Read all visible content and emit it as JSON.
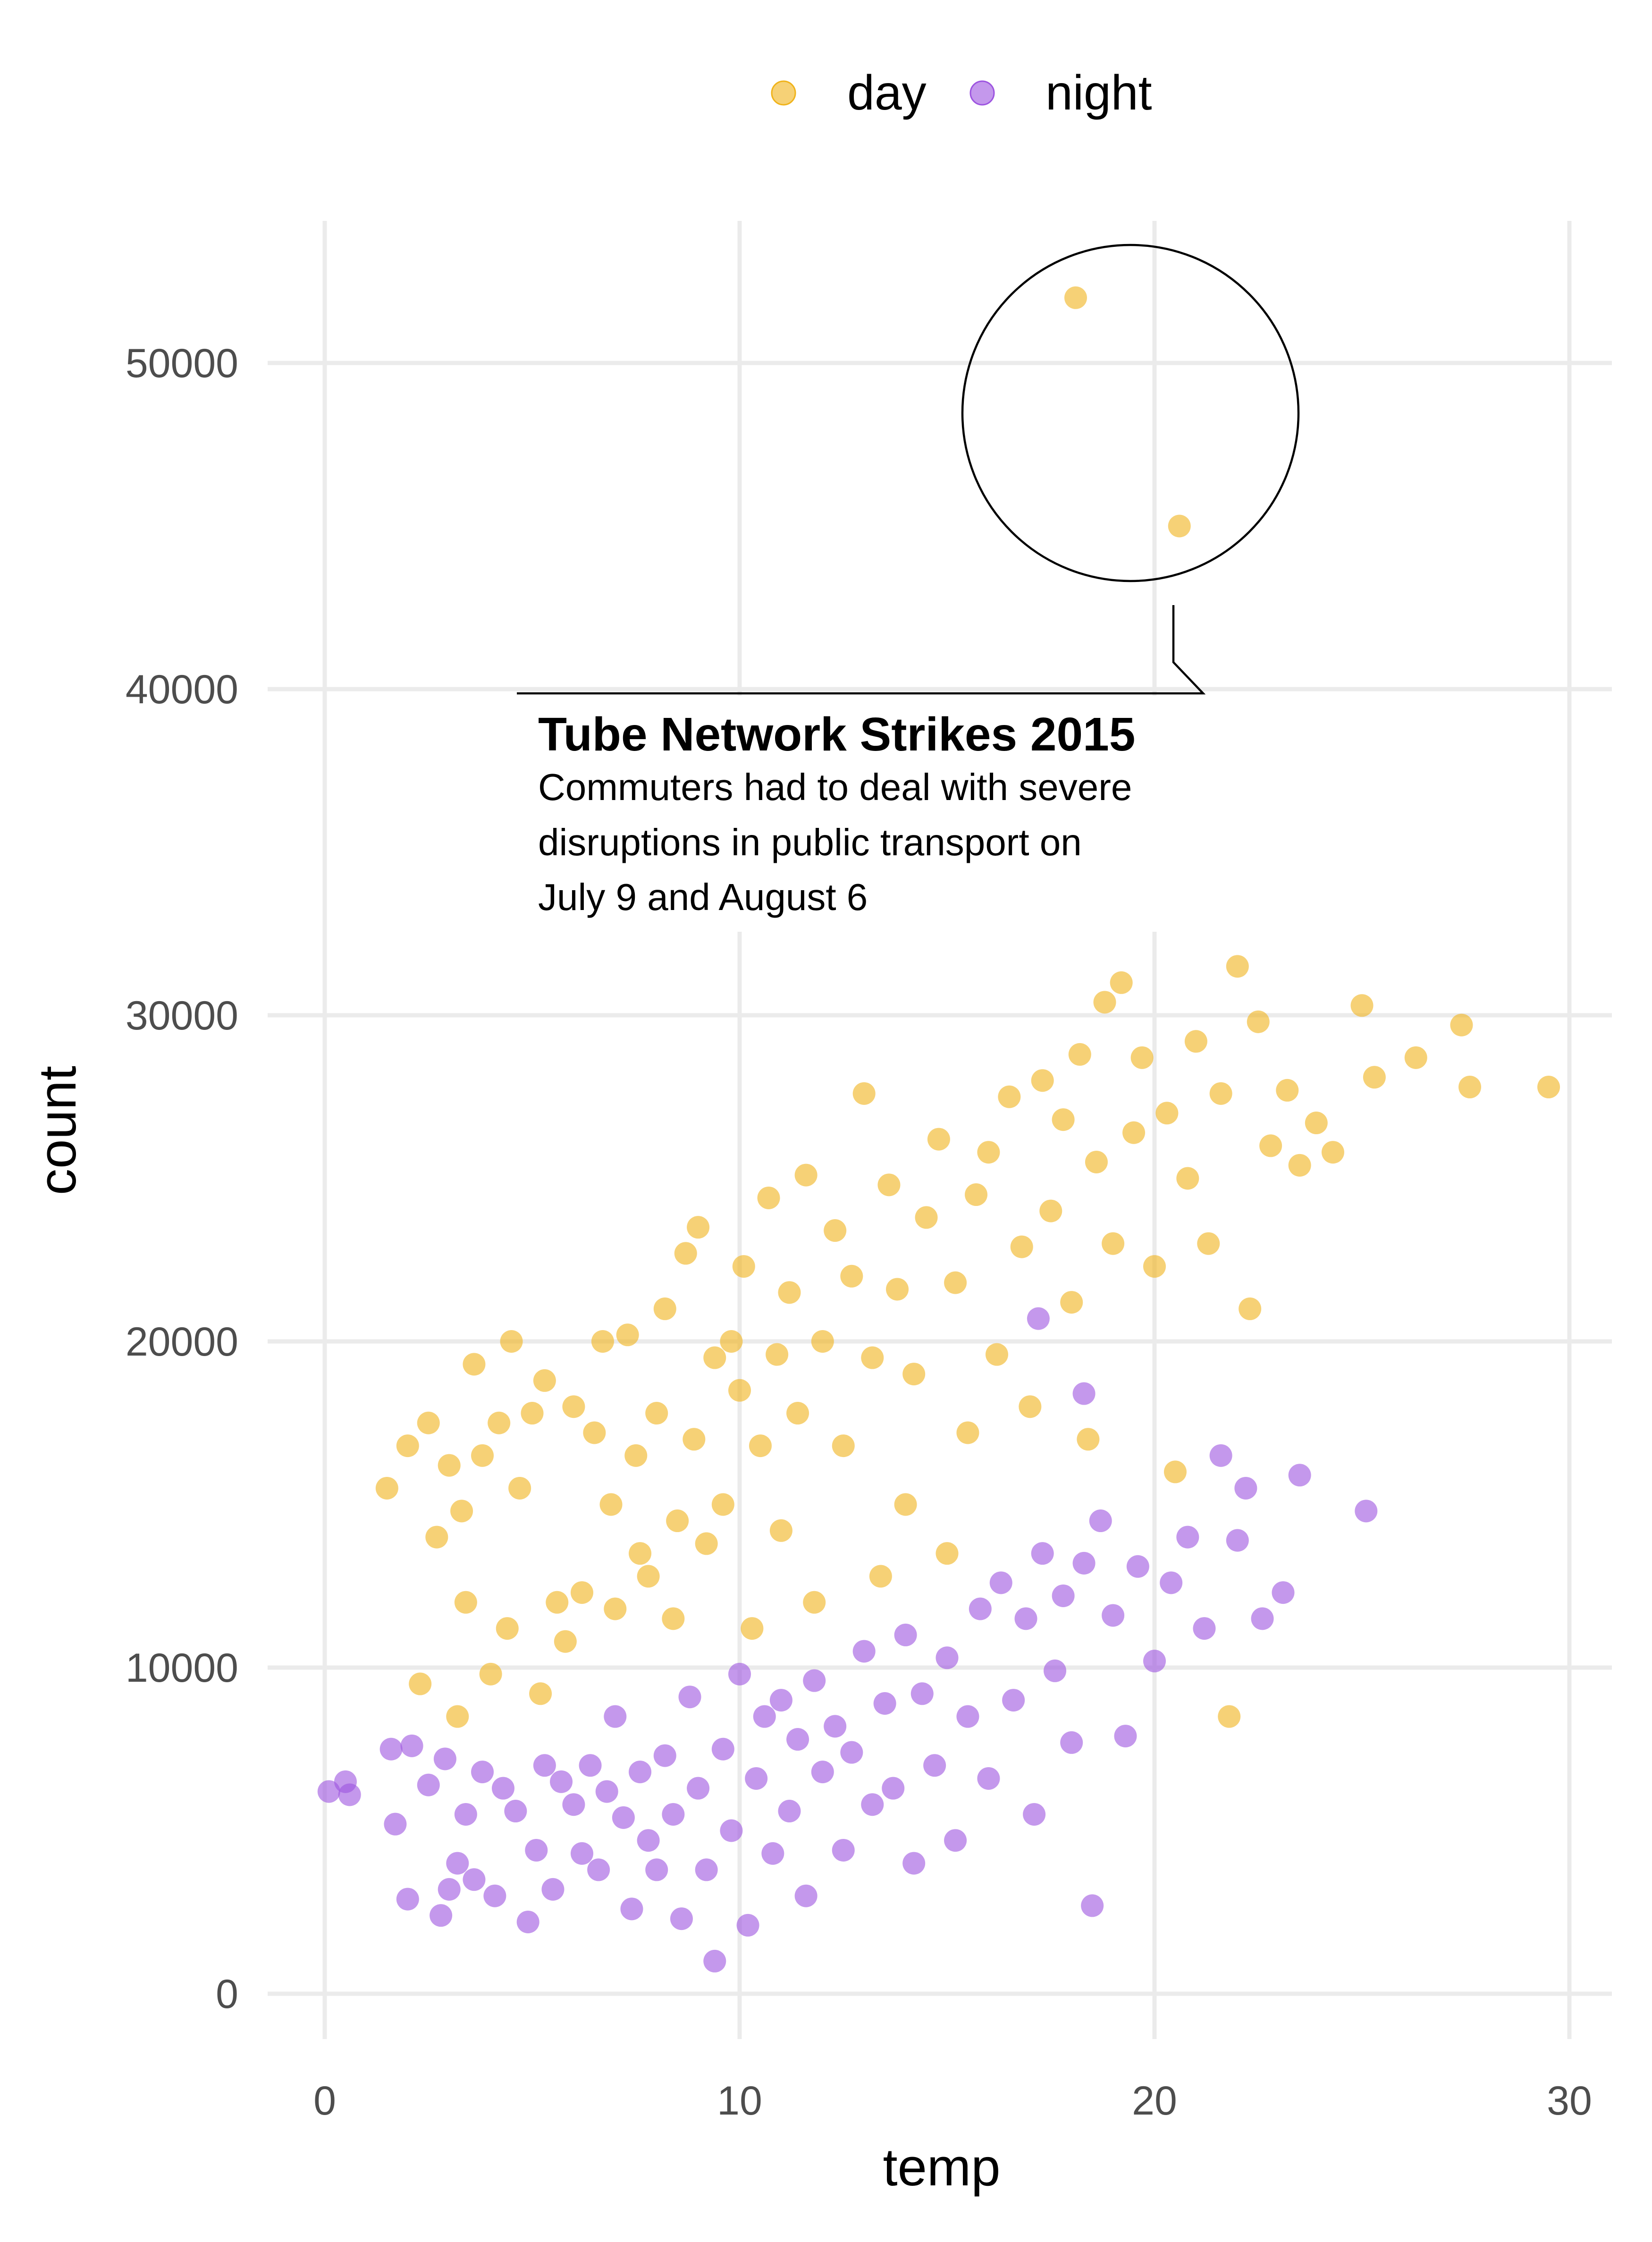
{
  "chart_data": {
    "type": "scatter",
    "title": "",
    "xlabel": "temp",
    "ylabel": "count",
    "xlim": [
      -1.4,
      31
    ],
    "ylim": [
      -1400,
      54000
    ],
    "xticks": [
      0,
      10,
      20,
      30
    ],
    "yticks": [
      0,
      10000,
      20000,
      30000,
      40000,
      50000
    ],
    "xtick_labels": [
      "0",
      "10",
      "20",
      "30"
    ],
    "ytick_labels": [
      "0",
      "10000",
      "20000",
      "30000",
      "40000",
      "50000"
    ],
    "grid": true,
    "legend_position": "top",
    "series": [
      {
        "name": "day",
        "color": "#F0B31A",
        "points": [
          [
            1.5,
            15500
          ],
          [
            2,
            16800
          ],
          [
            2.3,
            9500
          ],
          [
            2.5,
            17500
          ],
          [
            2.7,
            14000
          ],
          [
            3,
            16200
          ],
          [
            3.2,
            8500
          ],
          [
            3.3,
            14800
          ],
          [
            3.4,
            12000
          ],
          [
            3.6,
            19300
          ],
          [
            3.8,
            16500
          ],
          [
            4,
            9800
          ],
          [
            4.2,
            17500
          ],
          [
            4.4,
            11200
          ],
          [
            4.5,
            20000
          ],
          [
            4.7,
            15500
          ],
          [
            5,
            17800
          ],
          [
            5.2,
            9200
          ],
          [
            5.3,
            18800
          ],
          [
            5.6,
            12000
          ],
          [
            5.8,
            10800
          ],
          [
            6,
            18000
          ],
          [
            6.2,
            12300
          ],
          [
            6.5,
            17200
          ],
          [
            6.7,
            20000
          ],
          [
            6.9,
            15000
          ],
          [
            7,
            11800
          ],
          [
            7.3,
            20200
          ],
          [
            7.5,
            16500
          ],
          [
            7.6,
            13500
          ],
          [
            7.8,
            12800
          ],
          [
            8,
            17800
          ],
          [
            8.2,
            21000
          ],
          [
            8.4,
            11500
          ],
          [
            8.5,
            14500
          ],
          [
            8.7,
            22700
          ],
          [
            8.9,
            17000
          ],
          [
            9,
            23500
          ],
          [
            9.2,
            13800
          ],
          [
            9.4,
            19500
          ],
          [
            9.6,
            15000
          ],
          [
            9.8,
            20000
          ],
          [
            10,
            18500
          ],
          [
            10.1,
            22300
          ],
          [
            10.3,
            11200
          ],
          [
            10.5,
            16800
          ],
          [
            10.7,
            24400
          ],
          [
            10.9,
            19600
          ],
          [
            11,
            14200
          ],
          [
            11.2,
            21500
          ],
          [
            11.4,
            17800
          ],
          [
            11.6,
            25100
          ],
          [
            11.8,
            12000
          ],
          [
            12,
            20000
          ],
          [
            12.3,
            23400
          ],
          [
            12.5,
            16800
          ],
          [
            12.7,
            22000
          ],
          [
            13,
            27600
          ],
          [
            13.2,
            19500
          ],
          [
            13.4,
            12800
          ],
          [
            13.6,
            24800
          ],
          [
            13.8,
            21600
          ],
          [
            14,
            15000
          ],
          [
            14.2,
            19000
          ],
          [
            14.5,
            23800
          ],
          [
            14.8,
            26200
          ],
          [
            15,
            13500
          ],
          [
            15.2,
            21800
          ],
          [
            15.5,
            17200
          ],
          [
            15.7,
            24500
          ],
          [
            16,
            25800
          ],
          [
            16.2,
            19600
          ],
          [
            16.5,
            27500
          ],
          [
            16.8,
            22900
          ],
          [
            17,
            18000
          ],
          [
            17.3,
            28000
          ],
          [
            17.5,
            24000
          ],
          [
            17.8,
            26800
          ],
          [
            18,
            21200
          ],
          [
            18.2,
            28800
          ],
          [
            18.4,
            17000
          ],
          [
            18.6,
            25500
          ],
          [
            18.8,
            30400
          ],
          [
            19,
            23000
          ],
          [
            19.2,
            31000
          ],
          [
            19.5,
            26400
          ],
          [
            19.7,
            28700
          ],
          [
            20,
            22300
          ],
          [
            20.3,
            27000
          ],
          [
            20.5,
            16000
          ],
          [
            20.8,
            25000
          ],
          [
            21,
            29200
          ],
          [
            21.3,
            23000
          ],
          [
            21.6,
            27600
          ],
          [
            21.8,
            8500
          ],
          [
            22,
            31500
          ],
          [
            22.3,
            21000
          ],
          [
            22.5,
            29800
          ],
          [
            22.8,
            26000
          ],
          [
            23.2,
            27700
          ],
          [
            23.5,
            25400
          ],
          [
            23.9,
            26700
          ],
          [
            24.3,
            25800
          ],
          [
            25,
            30300
          ],
          [
            25.3,
            28100
          ],
          [
            26.3,
            28700
          ],
          [
            27.4,
            29700
          ],
          [
            27.6,
            27800
          ],
          [
            29.5,
            27800
          ],
          [
            18.1,
            52000
          ],
          [
            20.6,
            45000
          ]
        ]
      },
      {
        "name": "night",
        "color": "#9D54E0",
        "points": [
          [
            0.1,
            6200
          ],
          [
            0.5,
            6500
          ],
          [
            0.6,
            6100
          ],
          [
            1.6,
            7500
          ],
          [
            1.7,
            5200
          ],
          [
            2,
            2900
          ],
          [
            2.1,
            7600
          ],
          [
            2.5,
            6400
          ],
          [
            2.8,
            2400
          ],
          [
            2.9,
            7200
          ],
          [
            3,
            3200
          ],
          [
            3.2,
            4000
          ],
          [
            3.4,
            5500
          ],
          [
            3.6,
            3500
          ],
          [
            3.8,
            6800
          ],
          [
            4.1,
            3000
          ],
          [
            4.3,
            6300
          ],
          [
            4.6,
            5600
          ],
          [
            4.9,
            2200
          ],
          [
            5.1,
            4400
          ],
          [
            5.3,
            7000
          ],
          [
            5.5,
            3200
          ],
          [
            5.7,
            6500
          ],
          [
            6,
            5800
          ],
          [
            6.2,
            4300
          ],
          [
            6.4,
            7000
          ],
          [
            6.6,
            3800
          ],
          [
            6.8,
            6200
          ],
          [
            7,
            8500
          ],
          [
            7.2,
            5400
          ],
          [
            7.4,
            2600
          ],
          [
            7.6,
            6800
          ],
          [
            7.8,
            4700
          ],
          [
            8,
            3800
          ],
          [
            8.2,
            7300
          ],
          [
            8.4,
            5500
          ],
          [
            8.6,
            2300
          ],
          [
            8.8,
            9100
          ],
          [
            9,
            6300
          ],
          [
            9.2,
            3800
          ],
          [
            9.4,
            1000
          ],
          [
            9.6,
            7500
          ],
          [
            9.8,
            5000
          ],
          [
            10,
            9800
          ],
          [
            10.2,
            2100
          ],
          [
            10.4,
            6600
          ],
          [
            10.6,
            8500
          ],
          [
            10.8,
            4300
          ],
          [
            11,
            9000
          ],
          [
            11.2,
            5600
          ],
          [
            11.4,
            7800
          ],
          [
            11.6,
            3000
          ],
          [
            11.8,
            9600
          ],
          [
            12,
            6800
          ],
          [
            12.3,
            8200
          ],
          [
            12.5,
            4400
          ],
          [
            12.7,
            7400
          ],
          [
            13,
            10500
          ],
          [
            13.2,
            5800
          ],
          [
            13.5,
            8900
          ],
          [
            13.7,
            6300
          ],
          [
            14,
            11000
          ],
          [
            14.2,
            4000
          ],
          [
            14.4,
            9200
          ],
          [
            14.7,
            7000
          ],
          [
            15,
            10300
          ],
          [
            15.2,
            4700
          ],
          [
            15.5,
            8500
          ],
          [
            15.8,
            11800
          ],
          [
            16,
            6600
          ],
          [
            16.3,
            12600
          ],
          [
            16.6,
            9000
          ],
          [
            16.9,
            11500
          ],
          [
            17.1,
            5500
          ],
          [
            17.3,
            13500
          ],
          [
            17.6,
            9900
          ],
          [
            17.8,
            12200
          ],
          [
            18,
            7700
          ],
          [
            18.3,
            13200
          ],
          [
            18.5,
            2700
          ],
          [
            18.7,
            14500
          ],
          [
            19,
            11600
          ],
          [
            19.3,
            7900
          ],
          [
            19.6,
            13100
          ],
          [
            20,
            10200
          ],
          [
            20.4,
            12600
          ],
          [
            20.8,
            14000
          ],
          [
            21.2,
            11200
          ],
          [
            21.6,
            16500
          ],
          [
            22,
            13900
          ],
          [
            22.2,
            15500
          ],
          [
            22.6,
            11500
          ],
          [
            23.1,
            12300
          ],
          [
            23.5,
            15900
          ],
          [
            25.1,
            14800
          ],
          [
            17.2,
            20700
          ],
          [
            18.3,
            18400
          ]
        ]
      }
    ],
    "annotation": {
      "title": "Tube Network Strikes 2015",
      "lines": [
        "Commuters had to deal with severe",
        "disruptions in public transport on",
        "July 9 and August 6"
      ]
    }
  }
}
